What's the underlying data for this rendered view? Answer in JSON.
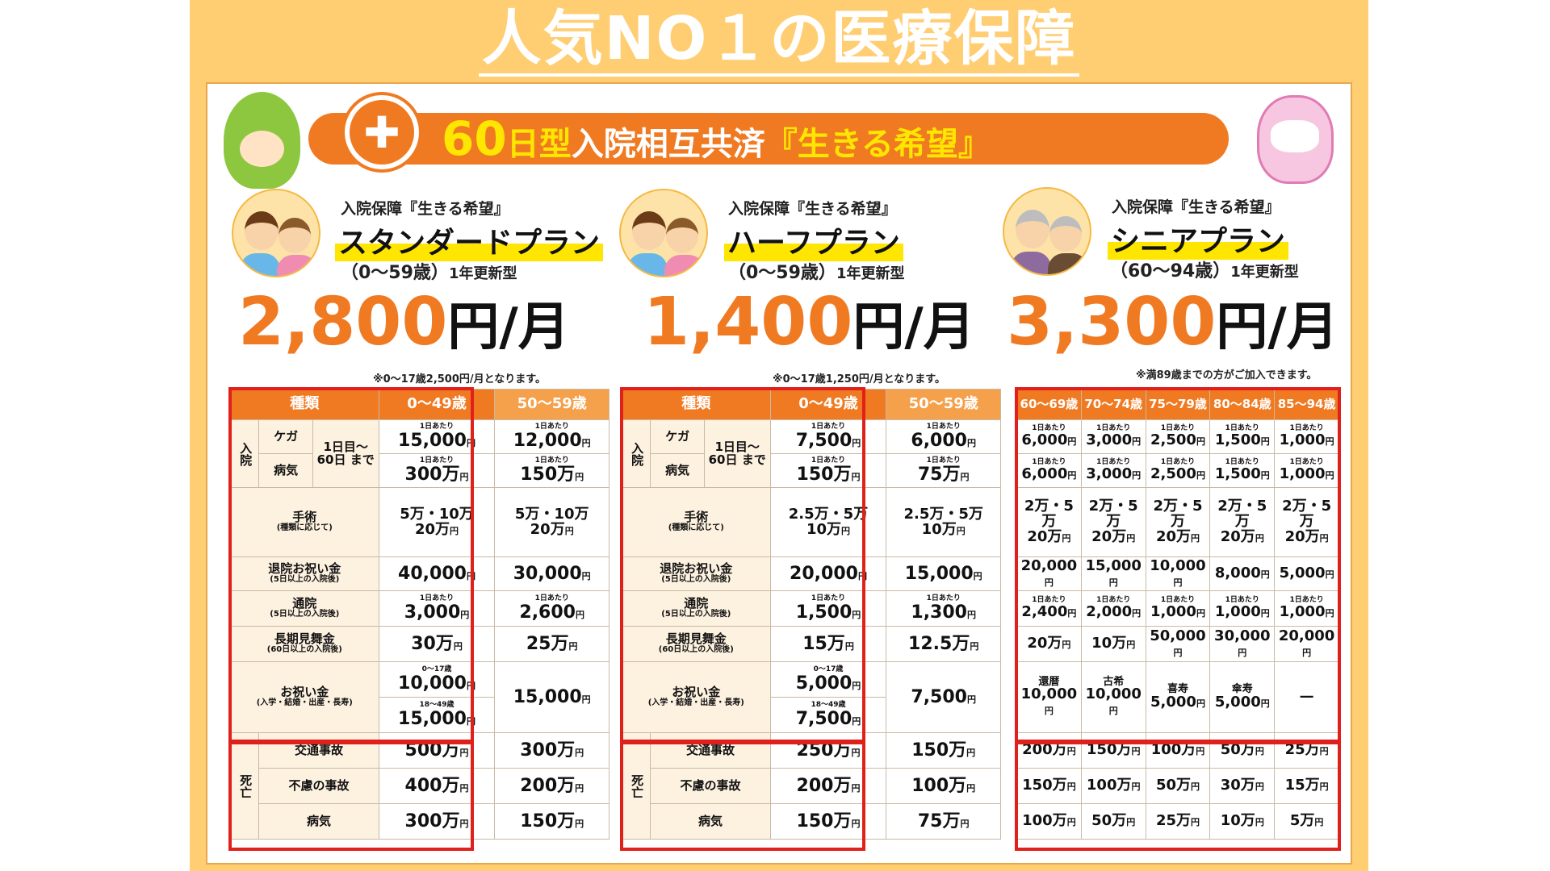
{
  "headline": "人気NO１の医療保障",
  "banner": {
    "num": "60",
    "type": "日型",
    "main": "入院相互共済",
    "quote": "『生きる希望』"
  },
  "plans": [
    {
      "subtitle": "入院保障『生きる希望』",
      "name": "スタンダードプラン",
      "age": "（0～59歳）",
      "renew": "1年更新型",
      "price": "2,800",
      "unit": "円/月",
      "note": "※0～17歳2,500円/月となります。"
    },
    {
      "subtitle": "入院保障『生きる希望』",
      "name": "ハーフプラン",
      "age": "（0～59歳）",
      "renew": "1年更新型",
      "price": "1,400",
      "unit": "円/月",
      "note": "※0～17歳1,250円/月となります。"
    },
    {
      "subtitle": "入院保障『生きる希望』",
      "name": "シニアプラン",
      "age": "（60～94歳）",
      "renew": "1年更新型",
      "price": "3,300",
      "unit": "円/月",
      "note": "※満89歳までの方がご加入できます。"
    }
  ],
  "labels": {
    "kind": "種類",
    "nyuin": "入院",
    "kega": "ケガ",
    "byoki": "病気",
    "period": "1日目～ 60日 まで",
    "shujutsu": "手術",
    "shujutsu_sub": "(種類に応じて)",
    "taiin": "退院お祝い金",
    "taiin_sub": "(5日以上の入院後)",
    "tsuin": "通院",
    "tsuin_sub": "(5日以上の入院後)",
    "choki": "長期見舞金",
    "choki_sub": "(60日以上の入院後)",
    "oiwai": "お祝い金",
    "oiwai_sub": "(入学・結婚・出産・長寿)",
    "shibo": "死亡",
    "kotsu": "交通事故",
    "furyo": "不慮の事故",
    "byoki2": "病気",
    "per_day": "1日あたり",
    "yen": "円"
  },
  "standard": {
    "cols": [
      "0～49歳",
      "50～59歳"
    ],
    "kega": [
      "15,000",
      "12,000"
    ],
    "byoki": [
      "300万",
      "150万"
    ],
    "shujutsu": [
      [
        "5万・10万",
        "20万"
      ],
      [
        "5万・10万",
        "20万"
      ]
    ],
    "taiin": [
      "40,000",
      "30,000"
    ],
    "tsuin": [
      "3,000",
      "2,600"
    ],
    "choki": [
      "30万",
      "25万"
    ],
    "oiwai_a_lab": "0～17歳",
    "oiwai_a": "10,000",
    "oiwai_b_lab": "18～49歳",
    "oiwai_b": "15,000",
    "oiwai_c": "15,000",
    "kotsu": [
      "500万",
      "300万"
    ],
    "furyo": [
      "400万",
      "200万"
    ]
  },
  "half": {
    "cols": [
      "0～49歳",
      "50～59歳"
    ],
    "kega": [
      "7,500",
      "6,000"
    ],
    "byoki": [
      "150万",
      "75万"
    ],
    "shujutsu": [
      [
        "2.5万・5万",
        "10万"
      ],
      [
        "2.5万・5万",
        "10万"
      ]
    ],
    "taiin": [
      "20,000",
      "15,000"
    ],
    "tsuin": [
      "1,500",
      "1,300"
    ],
    "choki": [
      "15万",
      "12.5万"
    ],
    "oiwai_a_lab": "0～17歳",
    "oiwai_a": "5,000",
    "oiwai_b_lab": "18～49歳",
    "oiwai_b": "7,500",
    "oiwai_c": "7,500",
    "kotsu": [
      "250万",
      "150万"
    ],
    "furyo": [
      "200万",
      "100万"
    ]
  },
  "senior": {
    "cols": [
      "60～69歳",
      "70～74歳",
      "75～79歳",
      "80～84歳",
      "85～94歳"
    ],
    "kega": [
      "6,000",
      "3,000",
      "2,500",
      "1,500",
      "1,000"
    ],
    "byoki": [
      "6,000",
      "3,000",
      "2,500",
      "1,500",
      "1,000"
    ],
    "shujutsu_a": [
      "2万・5万",
      "2万・5万",
      "2万・5万",
      "2万・5万",
      "2万・5万"
    ],
    "shujutsu_b": [
      "20万",
      "20万",
      "20万",
      "20万",
      "20万"
    ],
    "taiin": [
      "20,000",
      "15,000",
      "10,000",
      "8,000",
      "5,000"
    ],
    "tsuin": [
      "2,400",
      "2,000",
      "1,000",
      "1,000",
      "1,000"
    ],
    "choki": [
      "20万",
      "10万",
      "50,000",
      "30,000",
      "20,000"
    ],
    "oiwai_lab": [
      "還暦",
      "古希",
      "喜寿",
      "傘寿",
      ""
    ],
    "oiwai": [
      "10,000",
      "10,000",
      "5,000",
      "5,000",
      "—"
    ],
    "kotsu": [
      "200万",
      "150万",
      "100万",
      "50万",
      "25万"
    ],
    "furyo": [
      "150万",
      "100万",
      "50万",
      "30万",
      "15万"
    ],
    "byoki2": [
      "100万",
      "50万",
      "25万",
      "10万",
      "5万"
    ]
  }
}
